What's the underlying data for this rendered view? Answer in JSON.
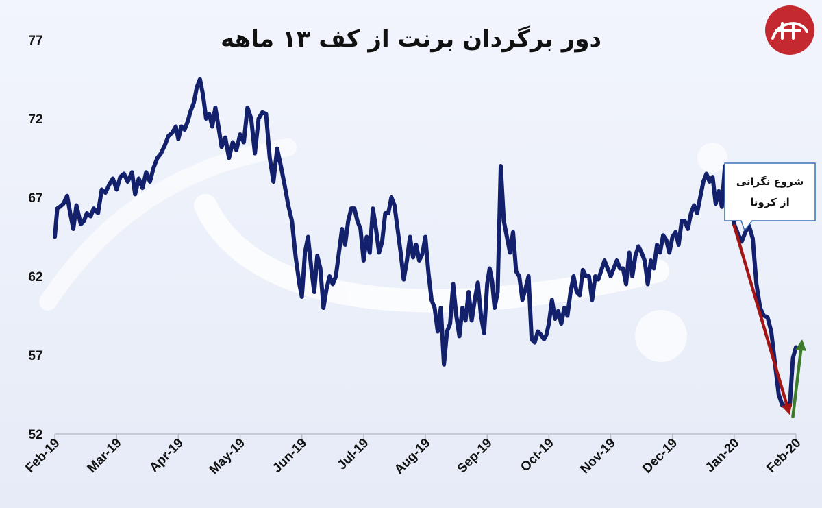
{
  "chart_data": {
    "type": "line",
    "title": "دور برگردان برنت از کف ۱۳ ماهه",
    "xlabel": "",
    "ylabel": "",
    "ylim": [
      52,
      77
    ],
    "yticks": [
      52,
      57,
      62,
      67,
      72,
      77
    ],
    "xticks": [
      "Feb-19",
      "Mar-19",
      "Apr-19",
      "May-19",
      "Jun-19",
      "Jul-19",
      "Aug-19",
      "Sep-19",
      "Oct-19",
      "Nov-19",
      "Dec-19",
      "Jan-20",
      "Feb-20"
    ],
    "grid": false,
    "legend": "none",
    "series": [
      {
        "color": "#13206b",
        "x": [
          0,
          0.04,
          0.08,
          0.14,
          0.2,
          0.25,
          0.3,
          0.35,
          0.42,
          0.47,
          0.52,
          0.58,
          0.63,
          0.7,
          0.76,
          0.82,
          0.88,
          0.94,
          1.0,
          1.06,
          1.12,
          1.18,
          1.25,
          1.3,
          1.36,
          1.42,
          1.48,
          1.54,
          1.6,
          1.66,
          1.72,
          1.78,
          1.84,
          1.9,
          1.96,
          2.0,
          2.05,
          2.1,
          2.15,
          2.2,
          2.25,
          2.3,
          2.35,
          2.4,
          2.45,
          2.5,
          2.55,
          2.6,
          2.65,
          2.7,
          2.76,
          2.82,
          2.88,
          2.94,
          3.0,
          3.06,
          3.12,
          3.18,
          3.24,
          3.3,
          3.36,
          3.42,
          3.48,
          3.54,
          3.6,
          3.66,
          3.72,
          3.78,
          3.84,
          3.9,
          3.96,
          4.0,
          4.05,
          4.1,
          4.15,
          4.2,
          4.25,
          4.3,
          4.35,
          4.4,
          4.45,
          4.5,
          4.55,
          4.6,
          4.65,
          4.7,
          4.75,
          4.8,
          4.85,
          4.9,
          4.95,
          5.0,
          5.05,
          5.1,
          5.15,
          5.2,
          5.25,
          5.3,
          5.35,
          5.4,
          5.45,
          5.5,
          5.55,
          5.6,
          5.65,
          5.7,
          5.75,
          5.8,
          5.85,
          5.9,
          5.95,
          6.0,
          6.05,
          6.1,
          6.15,
          6.2,
          6.25,
          6.3,
          6.35,
          6.4,
          6.45,
          6.5,
          6.55,
          6.6,
          6.65,
          6.7,
          6.75,
          6.8,
          6.85,
          6.9,
          6.95,
          7.0,
          7.04,
          7.08,
          7.12,
          7.17,
          7.22,
          7.27,
          7.32,
          7.37,
          7.42,
          7.47,
          7.52,
          7.57,
          7.62,
          7.67,
          7.72,
          7.77,
          7.82,
          7.87,
          7.92,
          7.96,
          8.0,
          8.05,
          8.1,
          8.15,
          8.2,
          8.25,
          8.3,
          8.35,
          8.4,
          8.45,
          8.5,
          8.55,
          8.6,
          8.65,
          8.7,
          8.75,
          8.8,
          8.85,
          8.9,
          8.95,
          9.0,
          9.05,
          9.1,
          9.15,
          9.2,
          9.25,
          9.3,
          9.35,
          9.4,
          9.45,
          9.5,
          9.55,
          9.6,
          9.65,
          9.7,
          9.75,
          9.8,
          9.85,
          9.9,
          9.95,
          10.0,
          10.05,
          10.1,
          10.15,
          10.2,
          10.25,
          10.3,
          10.35,
          10.4,
          10.45,
          10.5,
          10.55,
          10.6,
          10.65,
          10.7,
          10.75,
          10.8,
          10.85,
          10.9,
          10.95,
          11.0,
          11.06,
          11.12,
          11.18,
          11.24,
          11.3,
          11.36,
          11.42,
          11.48,
          11.54,
          11.6,
          11.66,
          11.72,
          11.78,
          11.84,
          11.9,
          11.95,
          12.0
        ],
        "values": [
          64.5,
          66.3,
          66.4,
          66.6,
          67.1,
          66.0,
          65.0,
          66.5,
          65.3,
          65.5,
          66.0,
          65.8,
          66.3,
          66.0,
          67.5,
          67.3,
          67.8,
          68.2,
          67.5,
          68.3,
          68.5,
          68.0,
          68.6,
          67.2,
          68.2,
          67.6,
          68.6,
          68.0,
          68.9,
          69.5,
          69.8,
          70.3,
          70.9,
          71.1,
          71.5,
          70.7,
          71.5,
          71.3,
          71.8,
          72.5,
          73.0,
          74.0,
          74.5,
          73.5,
          72.0,
          72.3,
          71.5,
          72.7,
          71.5,
          70.2,
          70.8,
          69.5,
          70.5,
          70.0,
          71.0,
          70.5,
          72.7,
          72.0,
          69.8,
          72.0,
          72.4,
          72.3,
          69.5,
          68.0,
          70.1,
          69.0,
          67.8,
          66.5,
          65.5,
          63.2,
          61.5,
          60.7,
          63.5,
          64.5,
          62.6,
          61.0,
          63.3,
          62.5,
          60.0,
          61.2,
          62.0,
          61.5,
          62.0,
          63.5,
          65.0,
          64.0,
          65.5,
          66.3,
          66.3,
          65.5,
          65.0,
          63.0,
          64.5,
          63.5,
          66.3,
          65.0,
          63.5,
          64.2,
          66.0,
          66.0,
          67.0,
          66.5,
          65.0,
          63.5,
          61.8,
          63.0,
          64.5,
          63.2,
          64.0,
          63.0,
          63.4,
          64.5,
          62.2,
          60.5,
          60.0,
          58.5,
          60.0,
          56.4,
          58.5,
          59.0,
          61.5,
          59.5,
          58.2,
          60.0,
          59.2,
          61.0,
          59.2,
          60.5,
          61.6,
          59.5,
          58.4,
          61.5,
          62.5,
          61.7,
          60.0,
          61.0,
          69.0,
          65.5,
          64.5,
          63.5,
          64.8,
          62.3,
          62.0,
          60.5,
          61.2,
          62.0,
          58.0,
          57.8,
          58.5,
          58.3,
          58.0,
          58.3,
          59.0,
          60.5,
          59.3,
          59.8,
          59.0,
          60.0,
          59.5,
          61.0,
          62.0,
          61.0,
          60.8,
          62.4,
          62.0,
          62.0,
          60.5,
          62.0,
          61.8,
          62.4,
          63.0,
          62.5,
          62.0,
          62.5,
          63.0,
          62.5,
          62.5,
          61.5,
          63.5,
          62.0,
          63.3,
          63.9,
          63.5,
          63.0,
          61.5,
          63.0,
          62.5,
          64.0,
          63.5,
          64.6,
          64.3,
          63.5,
          64.5,
          64.8,
          64.0,
          65.5,
          65.5,
          65.0,
          66.0,
          66.5,
          66.0,
          67.0,
          68.0,
          68.5,
          68.0,
          68.3,
          66.6,
          67.4,
          66.4,
          69.0,
          67.5,
          68.5,
          65.3,
          64.7,
          64.2,
          64.8,
          65.2,
          64.4,
          61.5,
          60.0,
          59.5,
          59.4,
          58.5,
          56.5,
          54.5,
          53.8,
          53.8,
          53.8,
          56.8,
          57.5
        ]
      }
    ],
    "annotation": {
      "lines": [
        "شروع نگرانی",
        "از کرونا"
      ],
      "at_x": 10.9,
      "at_y": 65.0
    },
    "arrows": [
      {
        "direction": "down",
        "color": "#a31515",
        "from": [
          11.0,
          65.2
        ],
        "to": [
          11.9,
          53.2
        ]
      },
      {
        "direction": "up",
        "color": "#3d7a2a",
        "from": [
          11.95,
          53.1
        ],
        "to": [
          12.1,
          58.0
        ]
      }
    ],
    "watermark_color": "#ffffff",
    "logo_color": "#c3292f"
  }
}
